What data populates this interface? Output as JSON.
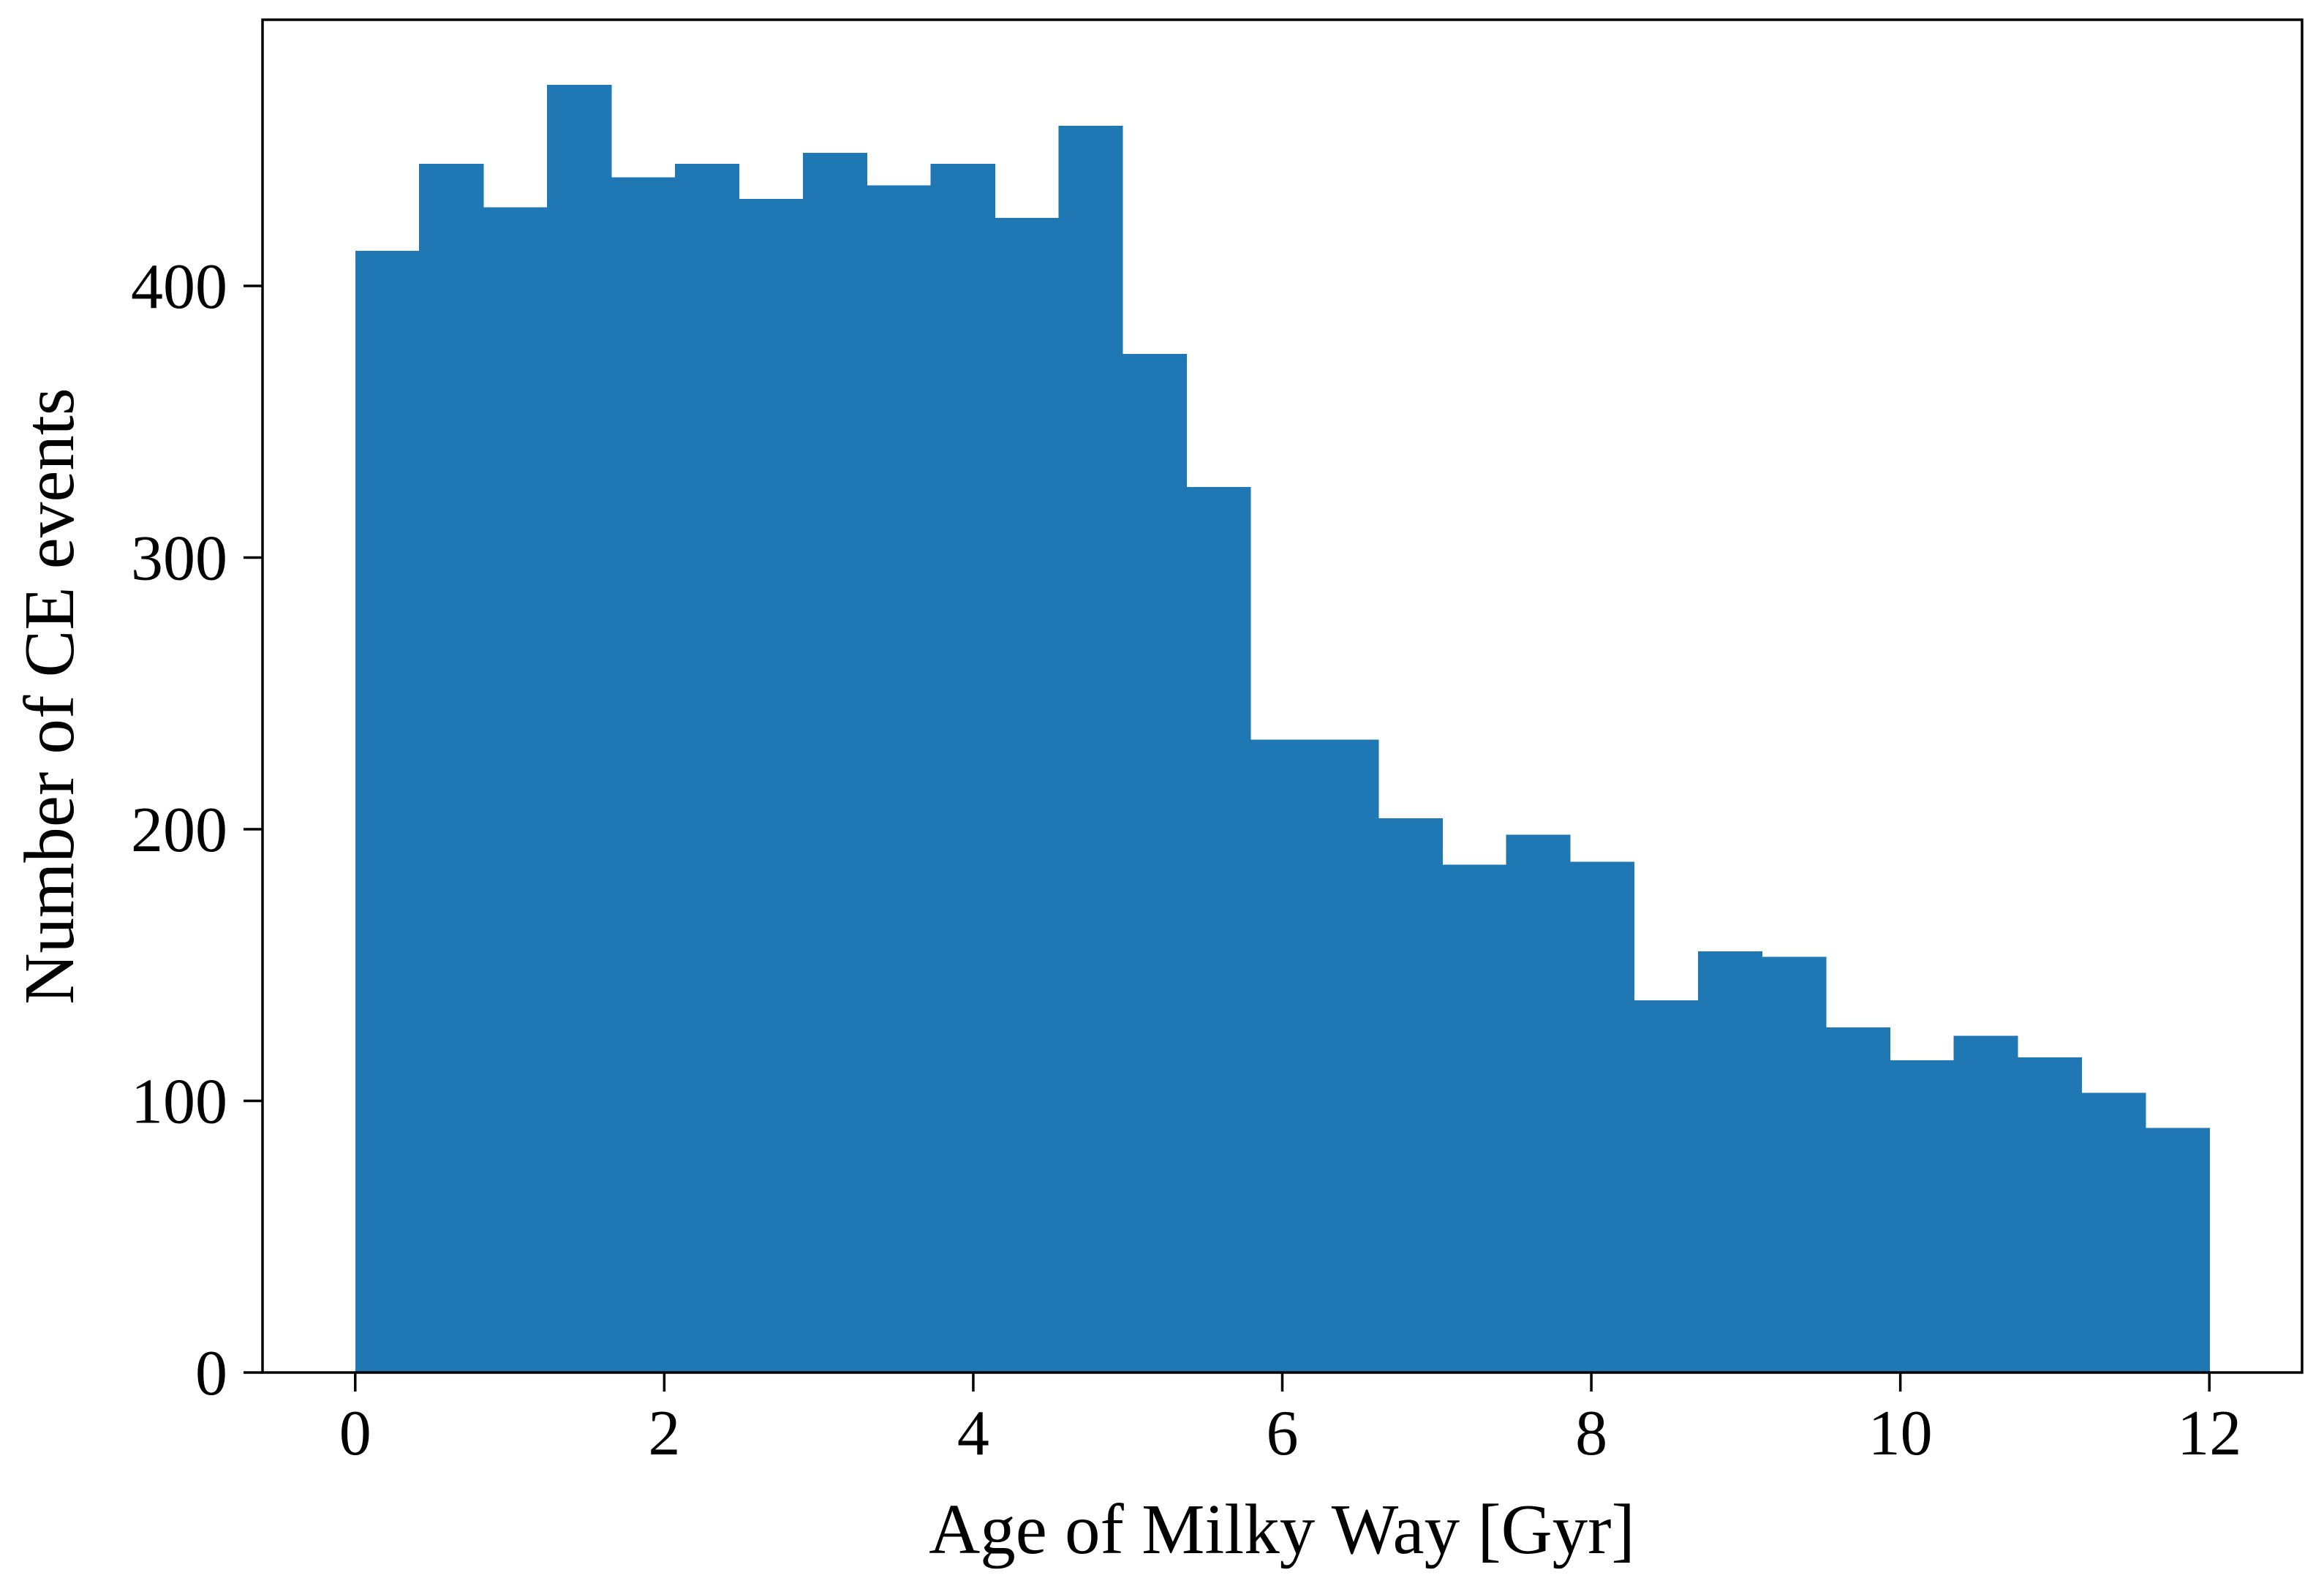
{
  "figure": {
    "background": "#ffffff",
    "axis_color": "#000000",
    "bar_color": "#1f77b4",
    "x_tick_labels": [
      "0",
      "2",
      "4",
      "6",
      "8",
      "10",
      "12"
    ],
    "y_tick_labels": [
      "0",
      "100",
      "200",
      "300",
      "400"
    ]
  },
  "chart_data": {
    "type": "bar",
    "subtype": "histogram",
    "title": "",
    "xlabel": "Age of Milky Way [Gyr]",
    "ylabel": "Number of CE events",
    "bin_start": 0,
    "bin_end": 12,
    "bin_count": 29,
    "bin_width": 0.4138,
    "values": [
      413,
      445,
      429,
      474,
      440,
      445,
      432,
      449,
      437,
      445,
      425,
      459,
      375,
      326,
      233,
      233,
      204,
      187,
      198,
      188,
      137,
      155,
      153,
      127,
      115,
      124,
      116,
      103,
      90
    ],
    "x_tick_values": [
      0,
      2,
      4,
      6,
      8,
      10,
      12
    ],
    "y_tick_values": [
      0,
      100,
      200,
      300,
      400
    ],
    "xlim": [
      -0.6,
      12.6
    ],
    "ylim": [
      0,
      498
    ],
    "grid": false,
    "legend_position": "none"
  }
}
